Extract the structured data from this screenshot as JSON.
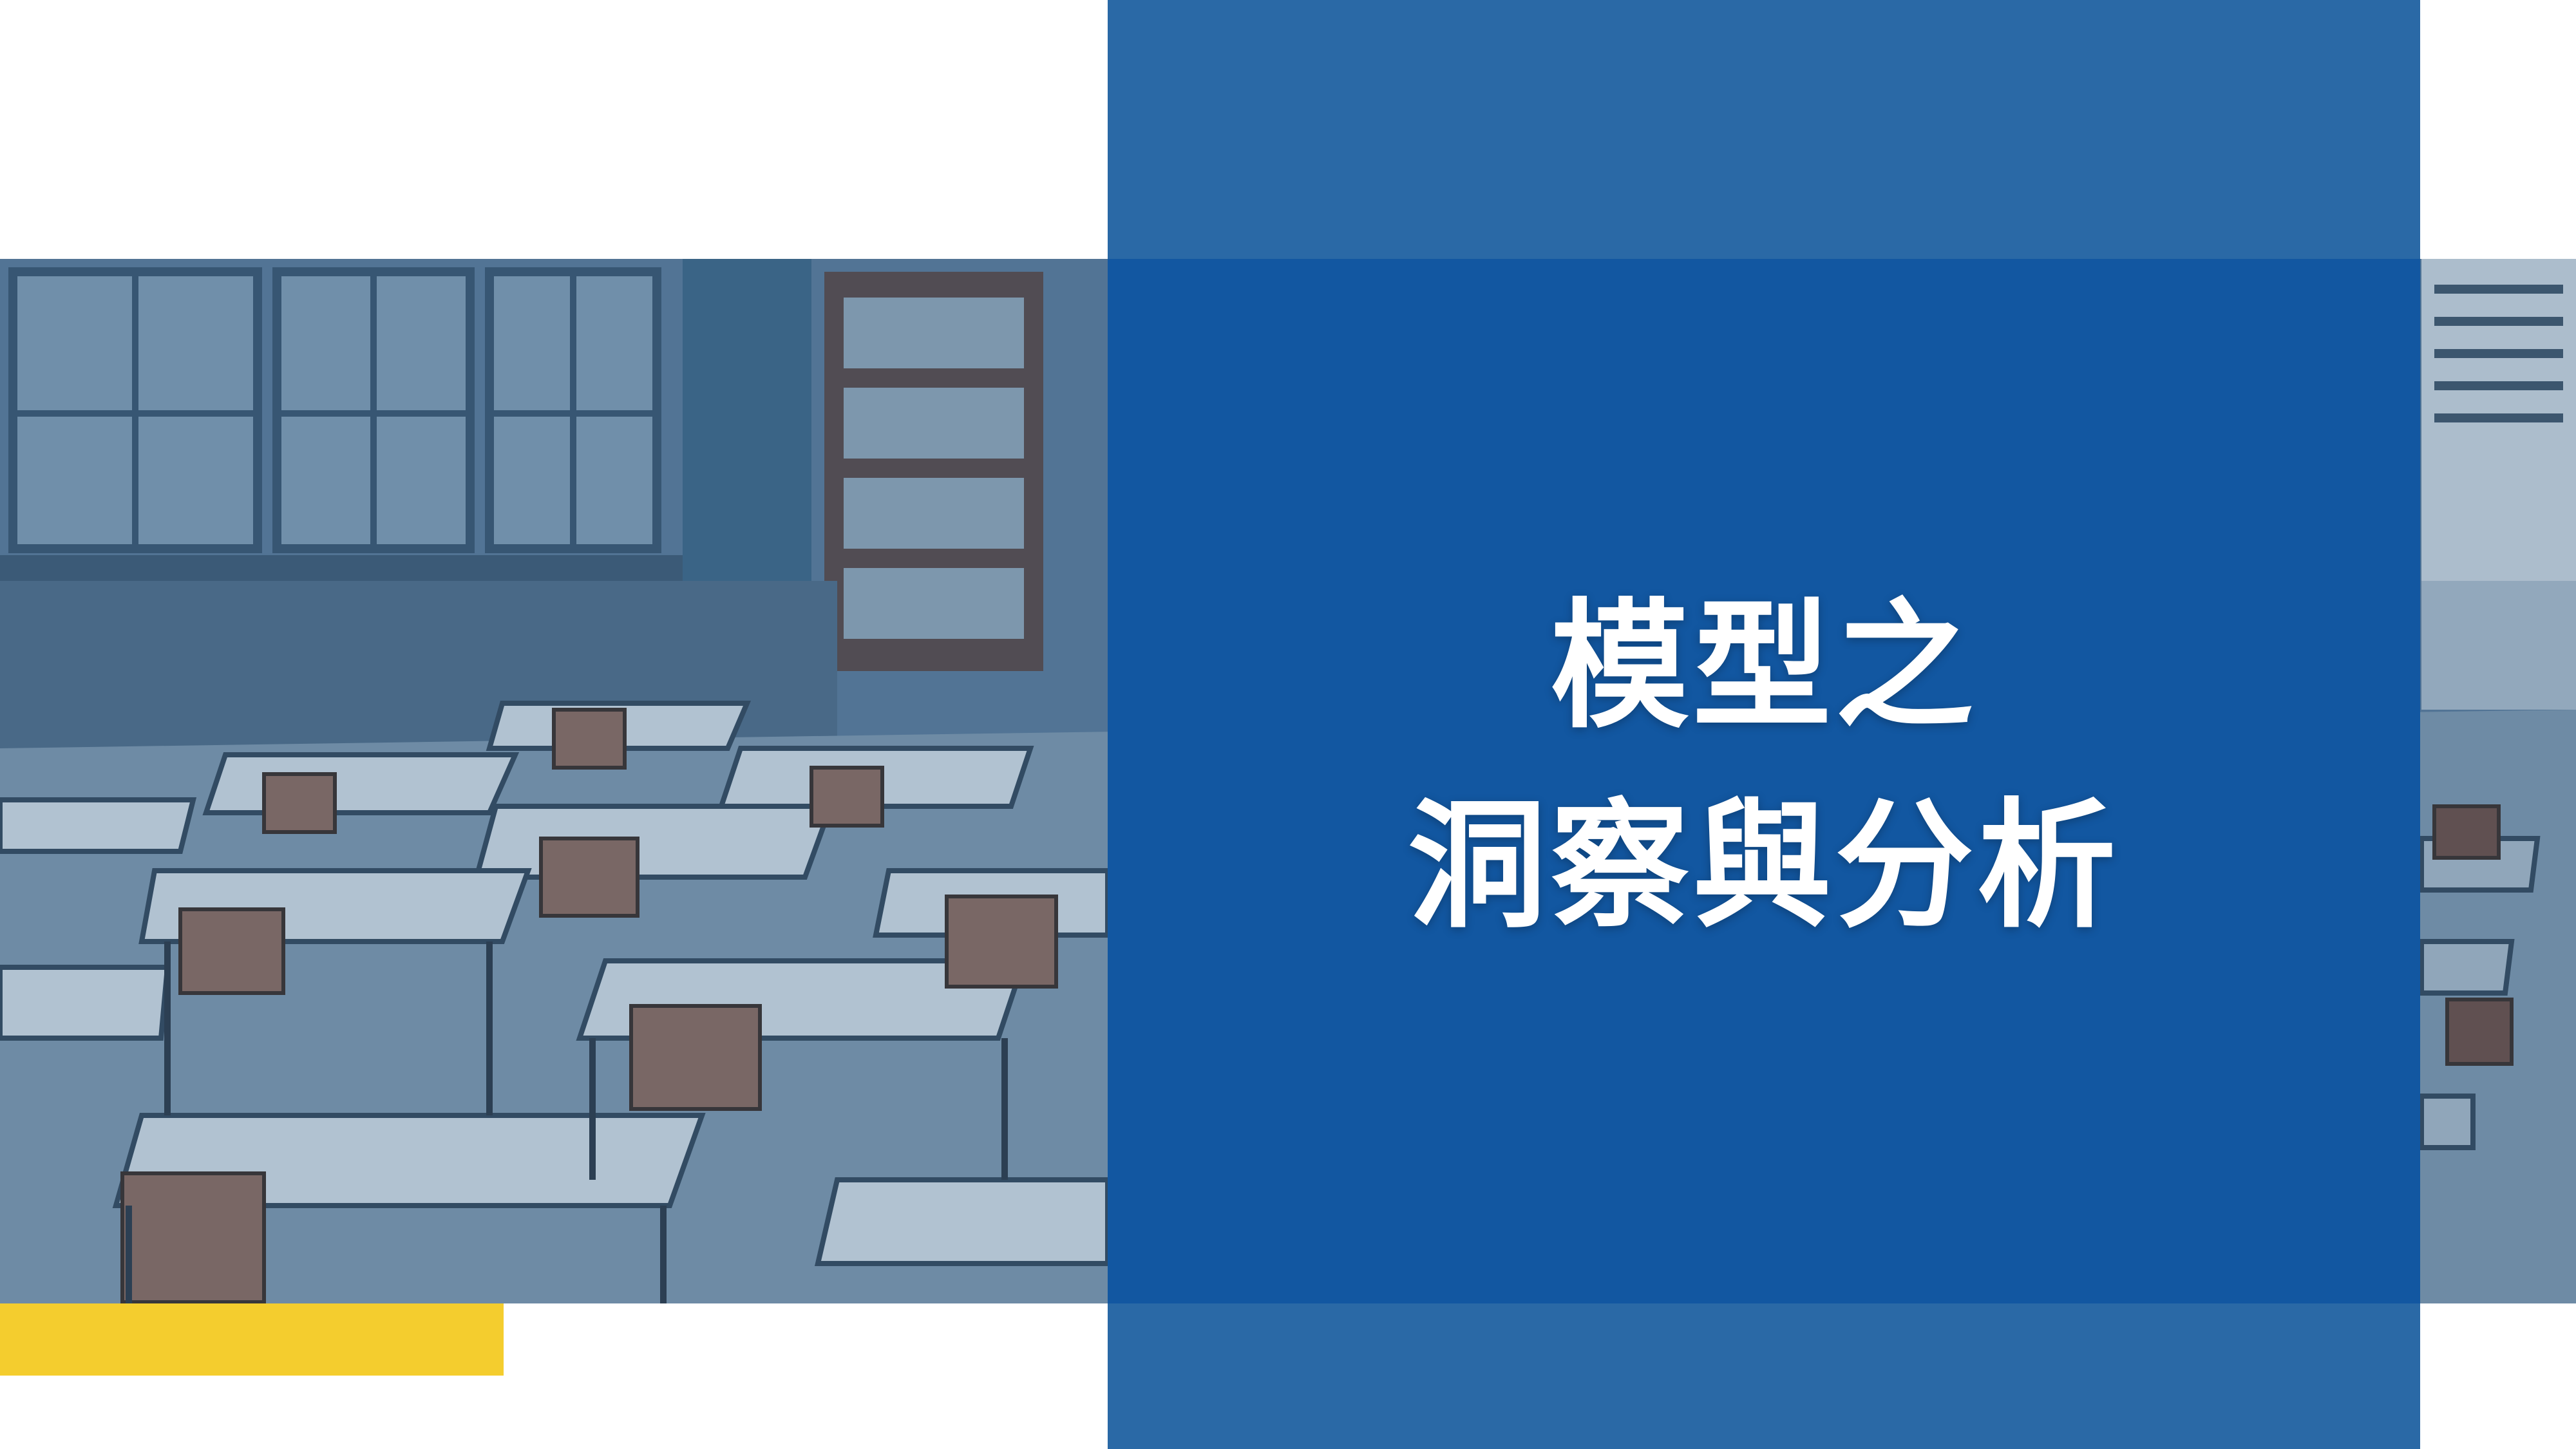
{
  "slide": {
    "title_line1": "模型之",
    "title_line2": "洞察與分析"
  },
  "colors": {
    "panel_blue": "#2a69a6",
    "accent_yellow": "#f4cd2e",
    "background": "#ffffff"
  },
  "image": {
    "subject": "empty-classroom-photo"
  }
}
